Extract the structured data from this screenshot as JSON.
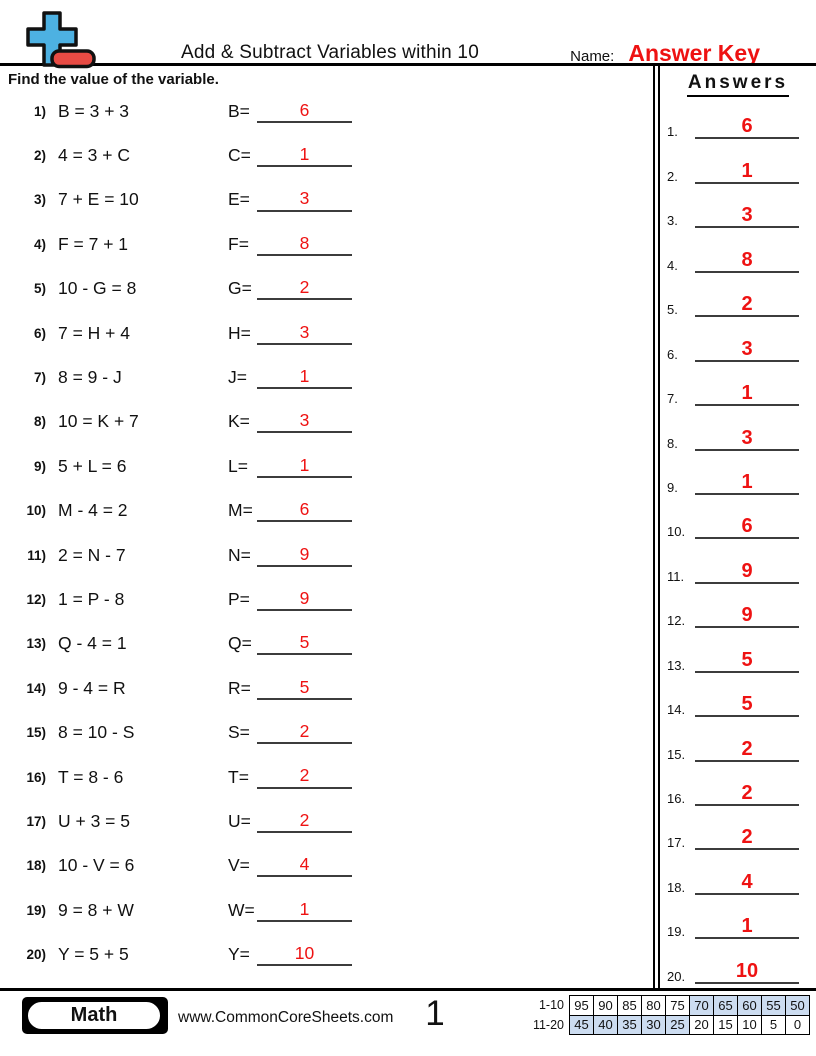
{
  "header": {
    "title": "Add & Subtract Variables within 10",
    "name_label": "Name:",
    "name_value": "Answer Key",
    "instruction": "Find the value of the variable.",
    "answers_header": "Answers"
  },
  "problems": [
    {
      "num": "1)",
      "equation": "B = 3 + 3",
      "var_label": "B=",
      "answer": "6"
    },
    {
      "num": "2)",
      "equation": "4 = 3 + C",
      "var_label": "C=",
      "answer": "1"
    },
    {
      "num": "3)",
      "equation": "7 + E = 10",
      "var_label": "E=",
      "answer": "3"
    },
    {
      "num": "4)",
      "equation": "F = 7 + 1",
      "var_label": "F=",
      "answer": "8"
    },
    {
      "num": "5)",
      "equation": "10 - G = 8",
      "var_label": "G=",
      "answer": "2"
    },
    {
      "num": "6)",
      "equation": "7 = H + 4",
      "var_label": "H=",
      "answer": "3"
    },
    {
      "num": "7)",
      "equation": "8 = 9 - J",
      "var_label": "J=",
      "answer": "1"
    },
    {
      "num": "8)",
      "equation": "10 = K + 7",
      "var_label": "K=",
      "answer": "3"
    },
    {
      "num": "9)",
      "equation": "5 + L = 6",
      "var_label": "L=",
      "answer": "1"
    },
    {
      "num": "10)",
      "equation": "M - 4 = 2",
      "var_label": "M=",
      "answer": "6"
    },
    {
      "num": "11)",
      "equation": "2 = N - 7",
      "var_label": "N=",
      "answer": "9"
    },
    {
      "num": "12)",
      "equation": "1 = P - 8",
      "var_label": "P=",
      "answer": "9"
    },
    {
      "num": "13)",
      "equation": "Q - 4 = 1",
      "var_label": "Q=",
      "answer": "5"
    },
    {
      "num": "14)",
      "equation": "9 - 4 = R",
      "var_label": "R=",
      "answer": "5"
    },
    {
      "num": "15)",
      "equation": "8 = 10 - S",
      "var_label": "S=",
      "answer": "2"
    },
    {
      "num": "16)",
      "equation": "T = 8 - 6",
      "var_label": "T=",
      "answer": "2"
    },
    {
      "num": "17)",
      "equation": "U + 3 = 5",
      "var_label": "U=",
      "answer": "2"
    },
    {
      "num": "18)",
      "equation": "10 - V = 6",
      "var_label": "V=",
      "answer": "4"
    },
    {
      "num": "19)",
      "equation": "9 = 8 + W",
      "var_label": "W=",
      "answer": "1"
    },
    {
      "num": "20)",
      "equation": "Y = 5 + 5",
      "var_label": "Y=",
      "answer": "10"
    }
  ],
  "answers_column": [
    {
      "num": "1.",
      "answer": "6"
    },
    {
      "num": "2.",
      "answer": "1"
    },
    {
      "num": "3.",
      "answer": "3"
    },
    {
      "num": "4.",
      "answer": "8"
    },
    {
      "num": "5.",
      "answer": "2"
    },
    {
      "num": "6.",
      "answer": "3"
    },
    {
      "num": "7.",
      "answer": "1"
    },
    {
      "num": "8.",
      "answer": "3"
    },
    {
      "num": "9.",
      "answer": "1"
    },
    {
      "num": "10.",
      "answer": "6"
    },
    {
      "num": "11.",
      "answer": "9"
    },
    {
      "num": "12.",
      "answer": "9"
    },
    {
      "num": "13.",
      "answer": "5"
    },
    {
      "num": "14.",
      "answer": "5"
    },
    {
      "num": "15.",
      "answer": "2"
    },
    {
      "num": "16.",
      "answer": "2"
    },
    {
      "num": "17.",
      "answer": "2"
    },
    {
      "num": "18.",
      "answer": "4"
    },
    {
      "num": "19.",
      "answer": "1"
    },
    {
      "num": "20.",
      "answer": "10"
    }
  ],
  "footer": {
    "subject": "Math",
    "website": "www.CommonCoreSheets.com",
    "page_number": "1",
    "score_table": {
      "row1_label": "1-10",
      "row1_values": [
        "95",
        "90",
        "85",
        "80",
        "75",
        "70",
        "65",
        "60",
        "55",
        "50"
      ],
      "row1_shaded": [
        0,
        0,
        0,
        0,
        0,
        1,
        1,
        1,
        1,
        1
      ],
      "row2_label": "11-20",
      "row2_values": [
        "45",
        "40",
        "35",
        "30",
        "25",
        "20",
        "15",
        "10",
        "5",
        "0"
      ],
      "row2_shaded": [
        1,
        1,
        1,
        1,
        1,
        0,
        0,
        0,
        0,
        0
      ]
    }
  },
  "colors": {
    "accent_red": "#ee1212",
    "logo_blue": "#4db1e2",
    "logo_red": "#e84b44",
    "score_shade_blue": "#ccdcf0"
  }
}
